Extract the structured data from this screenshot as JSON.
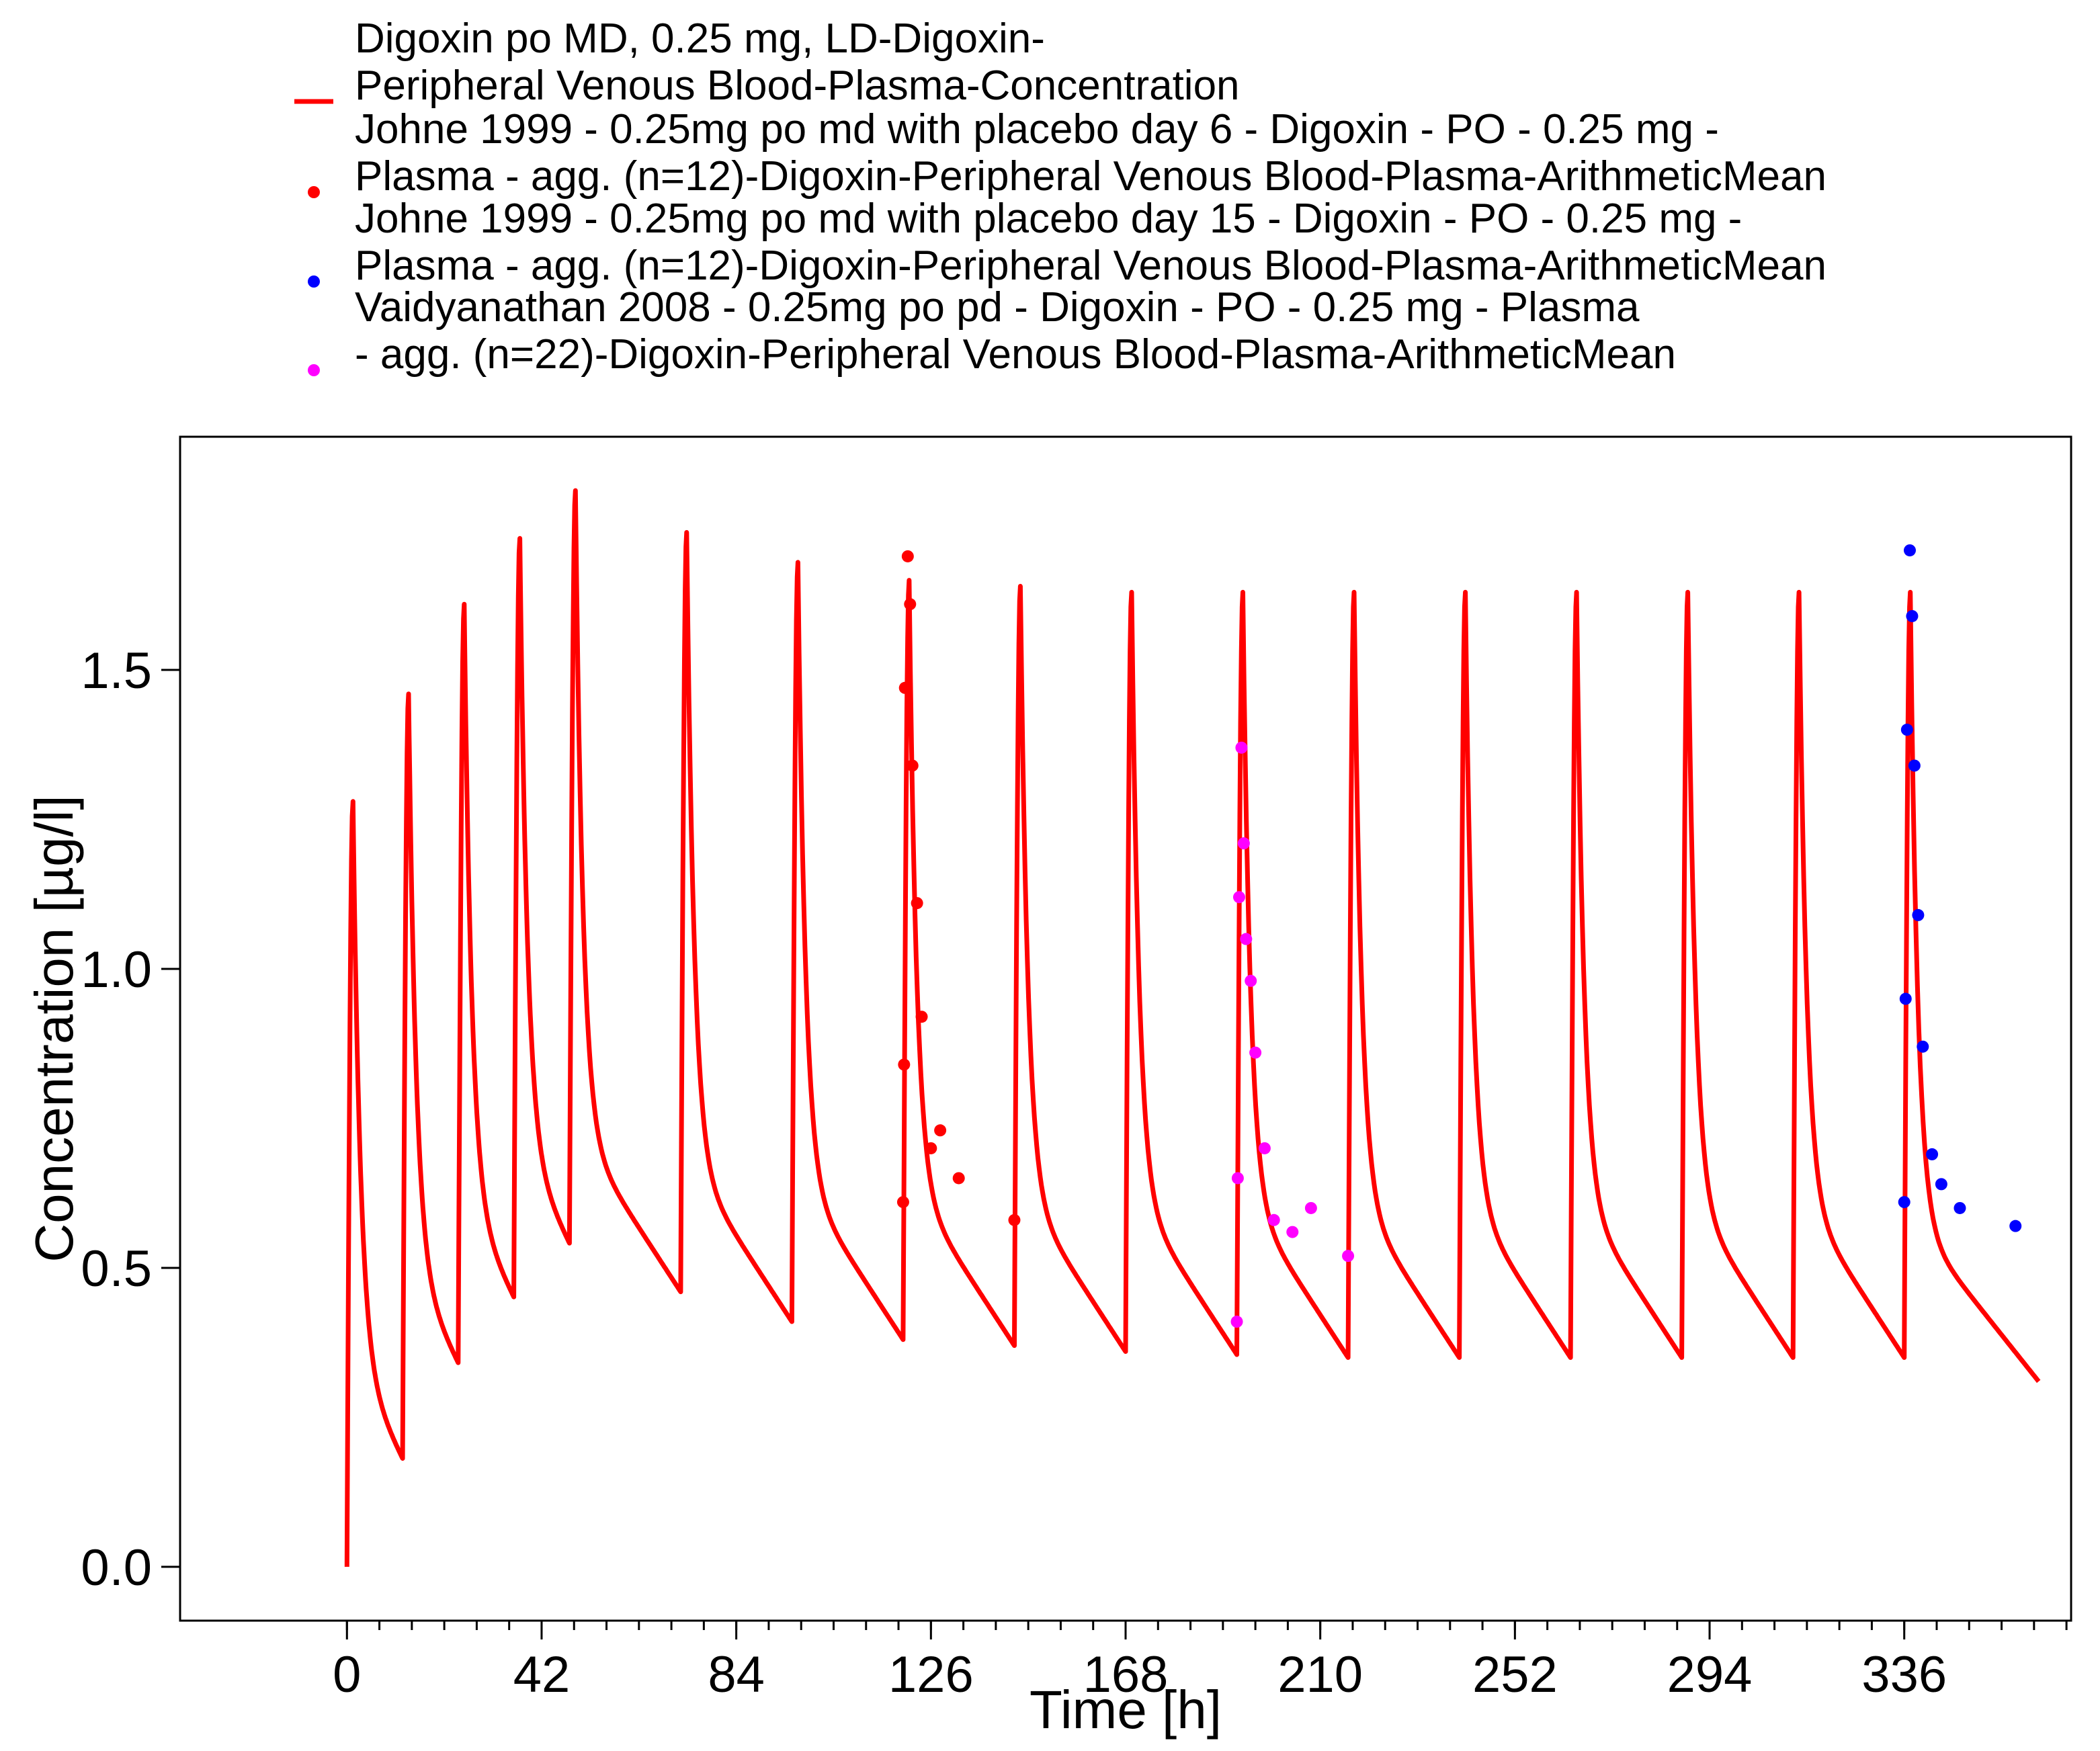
{
  "chart_data": {
    "type": "line",
    "xlabel": "Time [h]",
    "ylabel": "Concentration [µg/l]",
    "xlim": [
      -36,
      372
    ],
    "ylim": [
      -0.09,
      1.89
    ],
    "x_ticks": [
      0,
      42,
      84,
      126,
      168,
      210,
      252,
      294,
      336
    ],
    "x_tick_labels": [
      "0",
      "42",
      "84",
      "126",
      "168",
      "210",
      "252",
      "294",
      "336"
    ],
    "x_minor_step": 7,
    "y_ticks": [
      0.0,
      0.5,
      1.0,
      1.5
    ],
    "y_tick_labels": [
      "0.0",
      "0.5",
      "1.0",
      "1.5"
    ],
    "grid": false,
    "legend_position": "top",
    "legend": [
      {
        "kind": "line",
        "color": "#ff0000",
        "lines": [
          "Digoxin po MD, 0.25 mg, LD-Digoxin-",
          "Peripheral Venous Blood-Plasma-Concentration"
        ]
      },
      {
        "kind": "point",
        "color": "#ff0000",
        "lines": [
          "Johne 1999 - 0.25mg po md with placebo day 6 - Digoxin - PO - 0.25 mg -",
          "Plasma - agg. (n=12)-Digoxin-Peripheral Venous Blood-Plasma-ArithmeticMean"
        ]
      },
      {
        "kind": "point",
        "color": "#0000ff",
        "lines": [
          "Johne 1999 - 0.25mg po md with placebo day 15 - Digoxin - PO - 0.25 mg -",
          "Plasma - agg. (n=12)-Digoxin-Peripheral Venous Blood-Plasma-ArithmeticMean"
        ]
      },
      {
        "kind": "point",
        "color": "#ff00ff",
        "lines": [
          "Vaidyanathan 2008 - 0.25mg po pd - Digoxin - PO - 0.25 mg - Plasma",
          "- agg. (n=22)-Digoxin-Peripheral Venous Blood-Plasma-ArithmeticMean"
        ]
      }
    ],
    "series": [
      {
        "name": "Digoxin po MD, 0.25 mg, LD-Digoxin-Peripheral Venous Blood-Plasma-Concentration",
        "kind": "line",
        "color": "#ff0000",
        "dose_times": [
          0,
          12,
          24,
          36,
          48,
          72,
          96,
          120,
          144,
          168,
          192,
          216,
          240,
          264,
          288,
          312,
          336
        ],
        "peaks": [
          1.28,
          1.46,
          1.61,
          1.72,
          1.8,
          1.73,
          1.68,
          1.65,
          1.64,
          1.63,
          1.63,
          1.63,
          1.63,
          1.63,
          1.63,
          1.63,
          1.63
        ],
        "troughs": [
          0.18,
          0.34,
          0.45,
          0.54,
          0.46,
          0.41,
          0.38,
          0.37,
          0.36,
          0.355,
          0.35,
          0.35,
          0.35,
          0.35,
          0.35,
          0.35,
          0.31
        ],
        "end_time": 365
      },
      {
        "name": "Johne 1999 - 0.25mg po md with placebo day 6 - Digoxin - PO - 0.25 mg - Plasma - agg. (n=12)-Digoxin-Peripheral Venous Blood-Plasma-ArithmeticMean",
        "kind": "scatter",
        "color": "#ff0000",
        "points": [
          [
            120,
            0.61
          ],
          [
            120.2,
            0.84
          ],
          [
            120.4,
            1.47
          ],
          [
            121,
            1.69
          ],
          [
            121.5,
            1.61
          ],
          [
            122,
            1.34
          ],
          [
            123,
            1.11
          ],
          [
            124,
            0.92
          ],
          [
            126,
            0.7
          ],
          [
            128,
            0.73
          ],
          [
            132,
            0.65
          ],
          [
            144,
            0.58
          ]
        ]
      },
      {
        "name": "Johne 1999 - 0.25mg po md with placebo day 15 - Digoxin - PO - 0.25 mg - Plasma - agg. (n=12)-Digoxin-Peripheral Venous Blood-Plasma-ArithmeticMean",
        "kind": "scatter",
        "color": "#0000ff",
        "points": [
          [
            336,
            0.61
          ],
          [
            336.3,
            0.95
          ],
          [
            336.6,
            1.4
          ],
          [
            337.2,
            1.7
          ],
          [
            337.7,
            1.59
          ],
          [
            338.2,
            1.34
          ],
          [
            339,
            1.09
          ],
          [
            340,
            0.87
          ],
          [
            342,
            0.69
          ],
          [
            344,
            0.64
          ],
          [
            348,
            0.6
          ],
          [
            360,
            0.57
          ]
        ]
      },
      {
        "name": "Vaidyanathan 2008 - 0.25mg po pd - Digoxin - PO - 0.25 mg - Plasma - agg. (n=22)-Digoxin-Peripheral Venous Blood-Plasma-ArithmeticMean",
        "kind": "scatter",
        "color": "#ff00ff",
        "points": [
          [
            192,
            0.41
          ],
          [
            192.2,
            0.65
          ],
          [
            192.5,
            1.12
          ],
          [
            193,
            1.37
          ],
          [
            193.5,
            1.21
          ],
          [
            194,
            1.05
          ],
          [
            195,
            0.98
          ],
          [
            196,
            0.86
          ],
          [
            198,
            0.7
          ],
          [
            200,
            0.58
          ],
          [
            204,
            0.56
          ],
          [
            208,
            0.6
          ],
          [
            216,
            0.52
          ]
        ]
      }
    ]
  }
}
